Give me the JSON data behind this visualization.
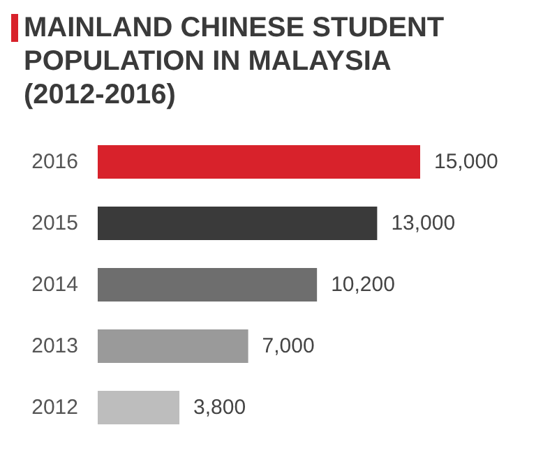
{
  "chart_data": {
    "type": "bar",
    "orientation": "horizontal",
    "title": "MAINLAND CHINESE STUDENT POPULATION IN MALAYSIA (2012-2016)",
    "categories": [
      "2016",
      "2015",
      "2014",
      "2013",
      "2012"
    ],
    "values": [
      15000,
      13000,
      10200,
      7000,
      3800
    ],
    "value_labels": [
      "15,000",
      "13,000",
      "10,200",
      "7,000",
      "3,800"
    ],
    "colors": [
      "#d8222b",
      "#3a3a3a",
      "#6e6e6e",
      "#9a9a9a",
      "#bdbdbd"
    ]
  }
}
